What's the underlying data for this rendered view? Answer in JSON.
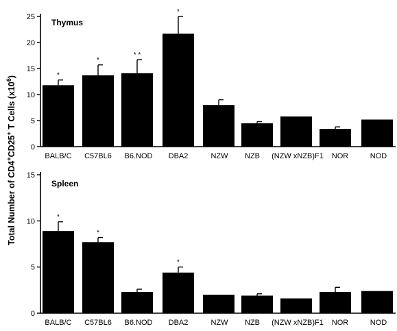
{
  "ylabel_parts": {
    "pre": "Total Number of CD4",
    "sup1": "+",
    "mid": "CD25",
    "sup2": "+",
    "post": " T Cells (x10",
    "sup3": "6",
    "end": ")"
  },
  "chart_data": [
    {
      "type": "bar",
      "title": "Thymus",
      "categories": [
        "BALB/C",
        "C57BL6",
        "B6.NOD",
        "DBA2",
        "NZW",
        "NZB",
        "(NZW xNZB)F1",
        "NOR",
        "NOD"
      ],
      "values": [
        11.8,
        13.7,
        14.1,
        21.7,
        8.0,
        4.5,
        5.8,
        3.4,
        5.2
      ],
      "errors": [
        1.0,
        2.0,
        2.6,
        3.3,
        1.0,
        0.3,
        0.0,
        0.4,
        0.0
      ],
      "significance": [
        "*",
        "*",
        "* *",
        "*",
        "",
        "",
        "",
        "",
        ""
      ],
      "ylim": [
        0,
        25
      ],
      "yticks": [
        0,
        5,
        10,
        15,
        20,
        25
      ],
      "color": "#000000"
    },
    {
      "type": "bar",
      "title": "Spleen",
      "categories": [
        "BALB/C",
        "C57BL6",
        "B6.NOD",
        "DBA2",
        "NZW",
        "NZB",
        "(NZW xNZB)F1",
        "NOR",
        "NOD"
      ],
      "values": [
        8.9,
        7.7,
        2.3,
        4.4,
        2.0,
        1.9,
        1.6,
        2.3,
        2.4
      ],
      "errors": [
        1.0,
        0.5,
        0.3,
        0.6,
        0.0,
        0.2,
        0.0,
        0.5,
        0.0
      ],
      "significance": [
        "*",
        "*",
        "",
        "*",
        "",
        "",
        "",
        "",
        ""
      ],
      "ylim": [
        0,
        15
      ],
      "yticks": [
        0,
        5,
        10,
        15
      ],
      "color": "#000000"
    }
  ]
}
